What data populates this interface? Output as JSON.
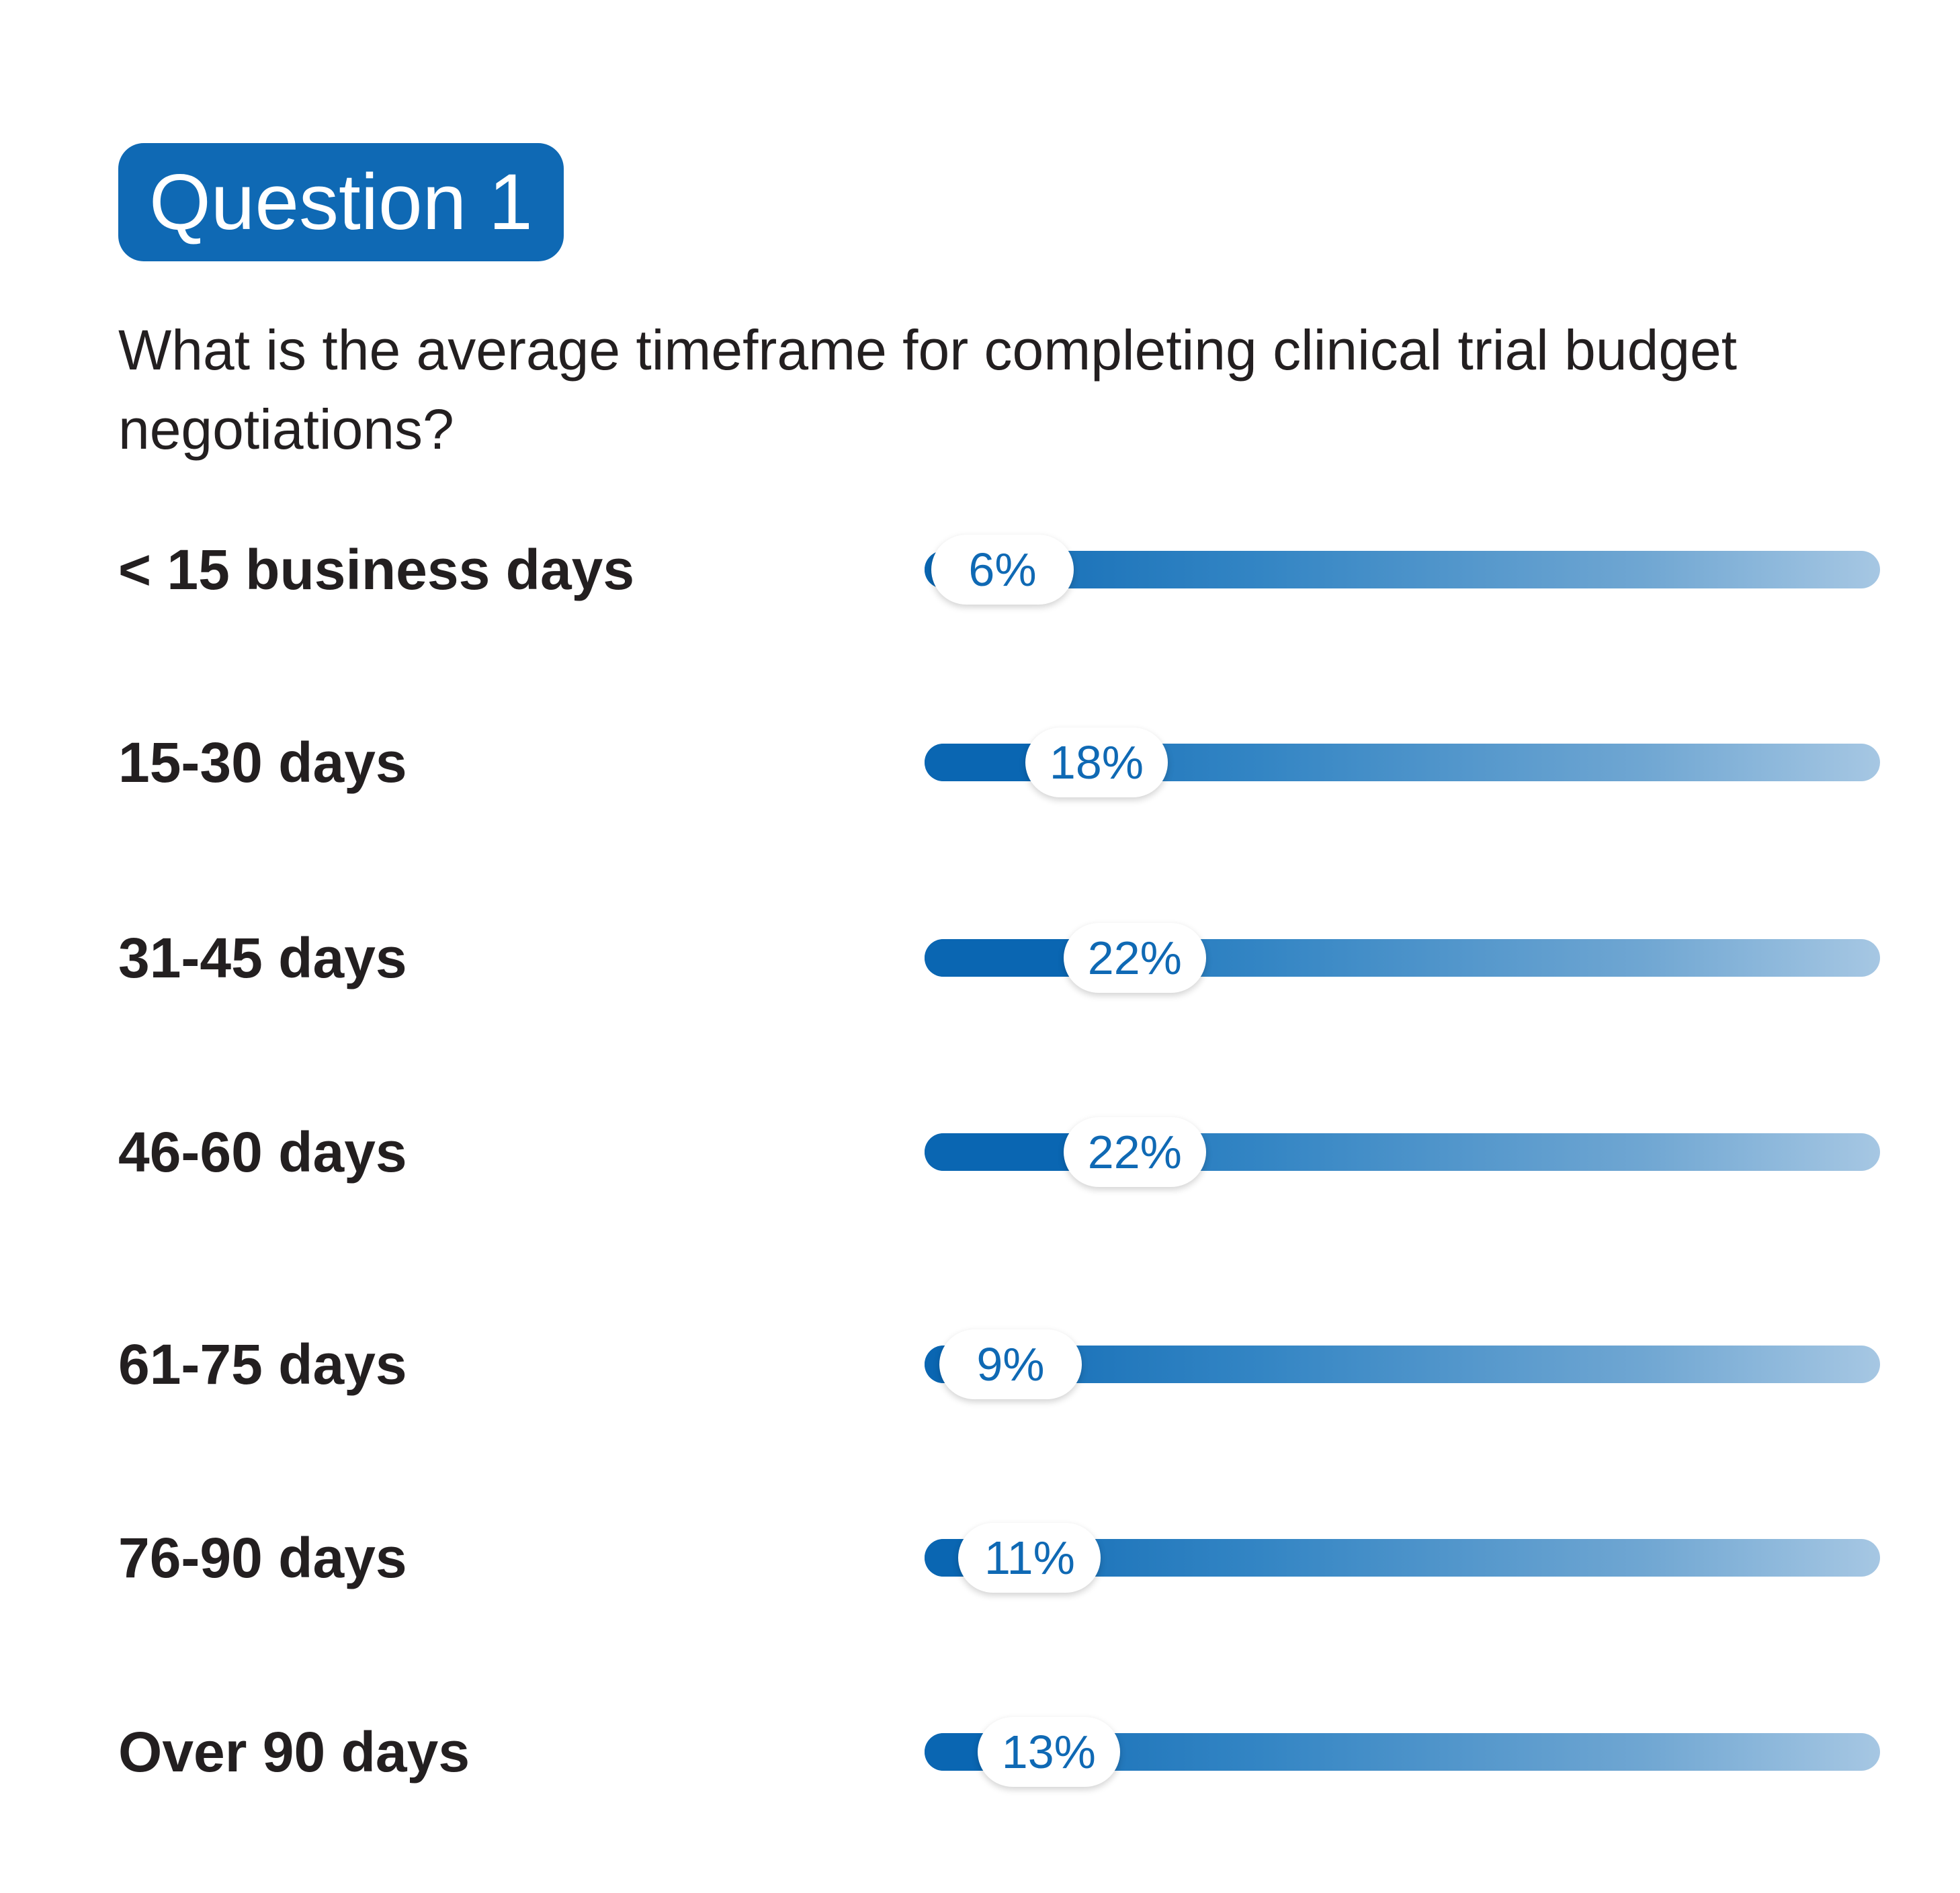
{
  "header": {
    "badge_label": "Question 1",
    "question": "What is the average timeframe for completing clinical trial budget negotiations?"
  },
  "colors": {
    "brand_blue": "#0f69b4",
    "track_start": "#0d68b3",
    "track_end": "#a6c7e3",
    "text": "#231f20"
  },
  "chart_data": {
    "type": "bar",
    "orientation": "horizontal",
    "title": "What is the average timeframe for completing clinical trial budget negotiations?",
    "categories": [
      "< 15 business days",
      "15-30 days",
      "31-45 days",
      "46-60 days",
      "61-75 days",
      "76-90 days",
      "Over 90 days"
    ],
    "values": [
      6,
      18,
      22,
      22,
      9,
      11,
      13
    ],
    "value_labels": [
      "6%",
      "18%",
      "22%",
      "22%",
      "9%",
      "11%",
      "13%"
    ],
    "unit": "%",
    "xlim": [
      0,
      100
    ],
    "grid": false,
    "legend": "none"
  }
}
